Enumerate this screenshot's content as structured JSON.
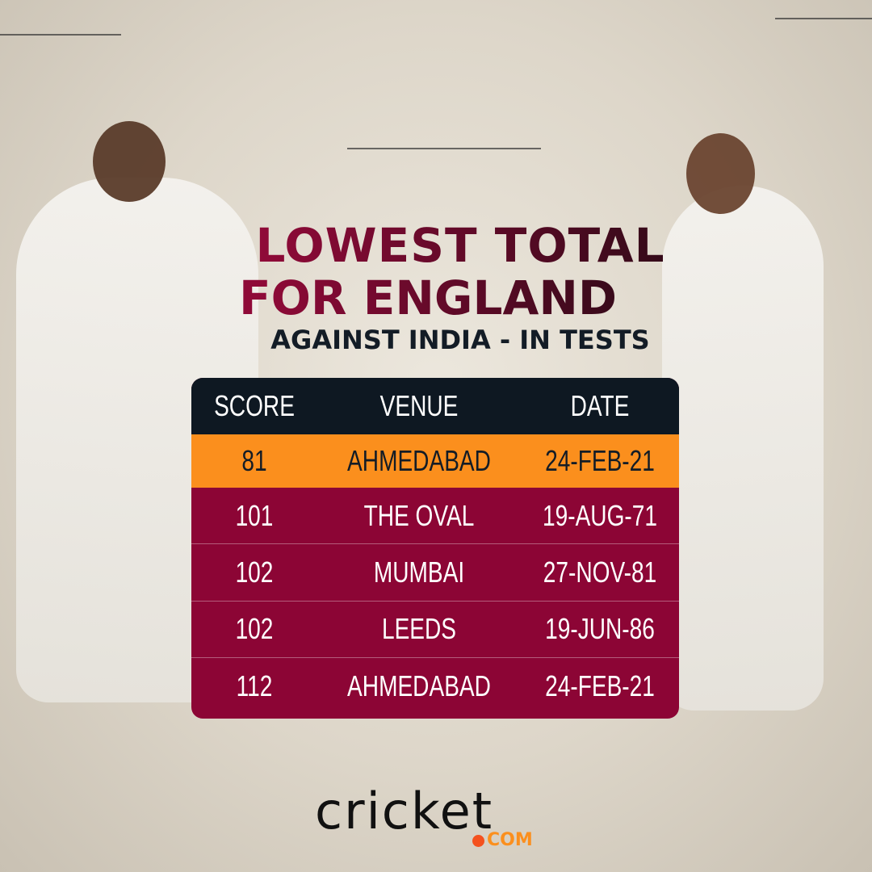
{
  "title": {
    "line1": "LOWEST TOTAL",
    "line2": "FOR ENGLAND",
    "subtitle": "AGAINST INDIA - IN TESTS"
  },
  "table": {
    "headers": [
      "SCORE",
      "VENUE",
      "DATE"
    ],
    "rows": [
      {
        "score": "81",
        "venue": "AHMEDABAD",
        "date": "24-FEB-21",
        "highlight": true
      },
      {
        "score": "101",
        "venue": "THE OVAL",
        "date": "19-AUG-71"
      },
      {
        "score": "102",
        "venue": "MUMBAI",
        "date": "27-NOV-81"
      },
      {
        "score": "102",
        "venue": "LEEDS",
        "date": "19-JUN-86"
      },
      {
        "score": "112",
        "venue": "AHMEDABAD",
        "date": "24-FEB-21"
      }
    ]
  },
  "logo": {
    "text": "cricket",
    "suffix": "COM"
  },
  "colors": {
    "header": "#0e1822",
    "highlight": "#fb8f1d",
    "rows": "#8c0535",
    "title": "#8f0a38"
  }
}
